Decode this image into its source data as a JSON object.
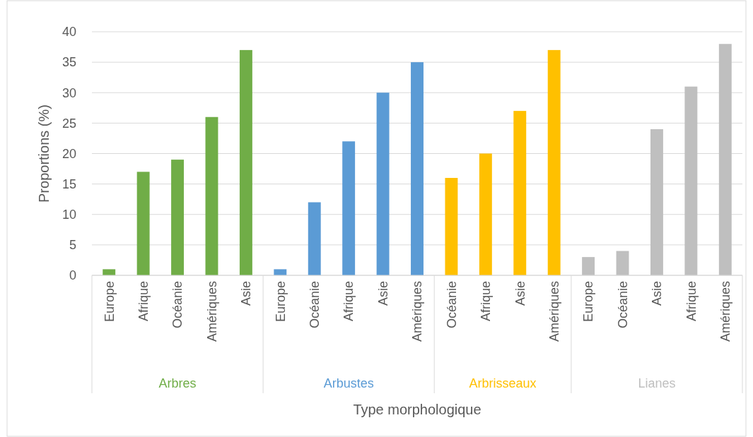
{
  "chart_data": {
    "type": "bar",
    "xlabel": "Type morphologique",
    "ylabel": "Proportions (%)",
    "categories": [
      "Europe",
      "Afrique",
      "Océanie",
      "Amériques",
      "Asie",
      "Europe",
      "Océanie",
      "Afrique",
      "Asie",
      "Amériques",
      "Océanie",
      "Afrique",
      "Asie",
      "Amériques",
      "Europe",
      "Océanie",
      "Asie",
      "Afrique",
      "Amériques"
    ],
    "series": [
      {
        "name": "Arbres",
        "color": "#70ad47",
        "values": [
          1,
          17,
          19,
          26,
          37,
          null,
          null,
          null,
          null,
          null,
          null,
          null,
          null,
          null,
          null,
          null,
          null,
          null,
          null
        ]
      },
      {
        "name": "Arbustes",
        "color": "#5b9bd5",
        "values": [
          null,
          null,
          null,
          null,
          null,
          1,
          12,
          22,
          30,
          35,
          null,
          null,
          null,
          null,
          null,
          null,
          null,
          null,
          null
        ]
      },
      {
        "name": "Arbrisseaux",
        "color": "#ffc000",
        "values": [
          null,
          null,
          null,
          null,
          null,
          null,
          null,
          null,
          null,
          null,
          16,
          20,
          27,
          37,
          null,
          null,
          null,
          null,
          null
        ]
      },
      {
        "name": "Lianes",
        "color": "#bfbfbf",
        "values": [
          null,
          null,
          null,
          null,
          null,
          null,
          null,
          null,
          null,
          null,
          null,
          null,
          null,
          null,
          3,
          4,
          24,
          31,
          38
        ]
      }
    ],
    "ylim": [
      0,
      40
    ],
    "yticks": [
      0,
      5,
      10,
      15,
      20,
      25,
      30,
      35,
      40
    ],
    "grid": "y"
  }
}
